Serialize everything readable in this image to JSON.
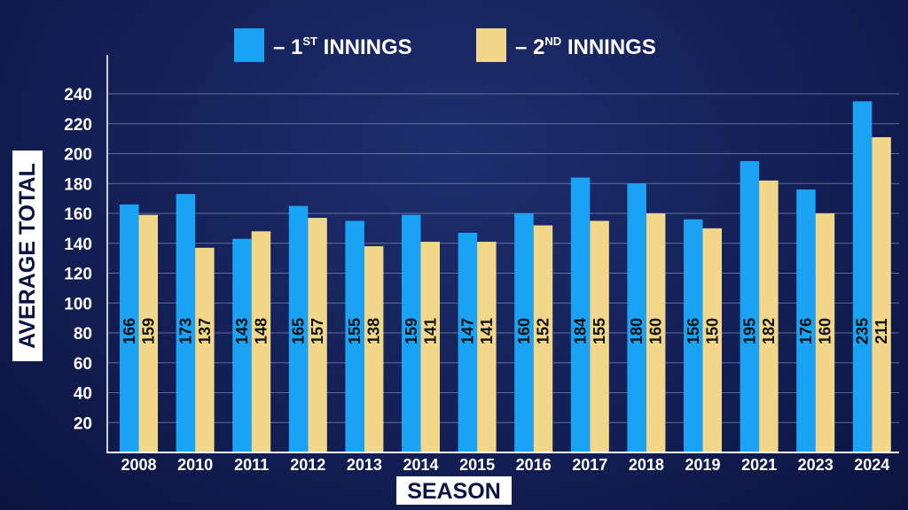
{
  "chart_data": {
    "type": "bar",
    "legend": [
      {
        "prefix": "– 1",
        "sup": "ST",
        "suffix": " INNINGS",
        "color": "#1aa3f5"
      },
      {
        "prefix": "– 2",
        "sup": "ND",
        "suffix": " INNINGS",
        "color": "#f2d68a"
      }
    ],
    "categories": [
      "2008",
      "2010",
      "2011",
      "2012",
      "2013",
      "2014",
      "2015",
      "2016",
      "2017",
      "2018",
      "2019",
      "2021",
      "2023",
      "2024"
    ],
    "series": [
      {
        "values": [
          166,
          173,
          143,
          165,
          155,
          159,
          147,
          160,
          184,
          180,
          156,
          195,
          176,
          235
        ],
        "color": "#1aa3f5"
      },
      {
        "values": [
          159,
          137,
          148,
          157,
          138,
          141,
          141,
          152,
          155,
          160,
          150,
          182,
          160,
          211
        ],
        "color": "#f2d68a"
      }
    ],
    "yticks": [
      "20",
      "40",
      "60",
      "80",
      "100",
      "120",
      "140",
      "160",
      "180",
      "200",
      "220",
      "240"
    ],
    "ylim": [
      0,
      240
    ],
    "ylabel": "AVERAGE TOTAL",
    "xlabel": "SEASON",
    "grid": true,
    "legend_position": "top-center"
  }
}
